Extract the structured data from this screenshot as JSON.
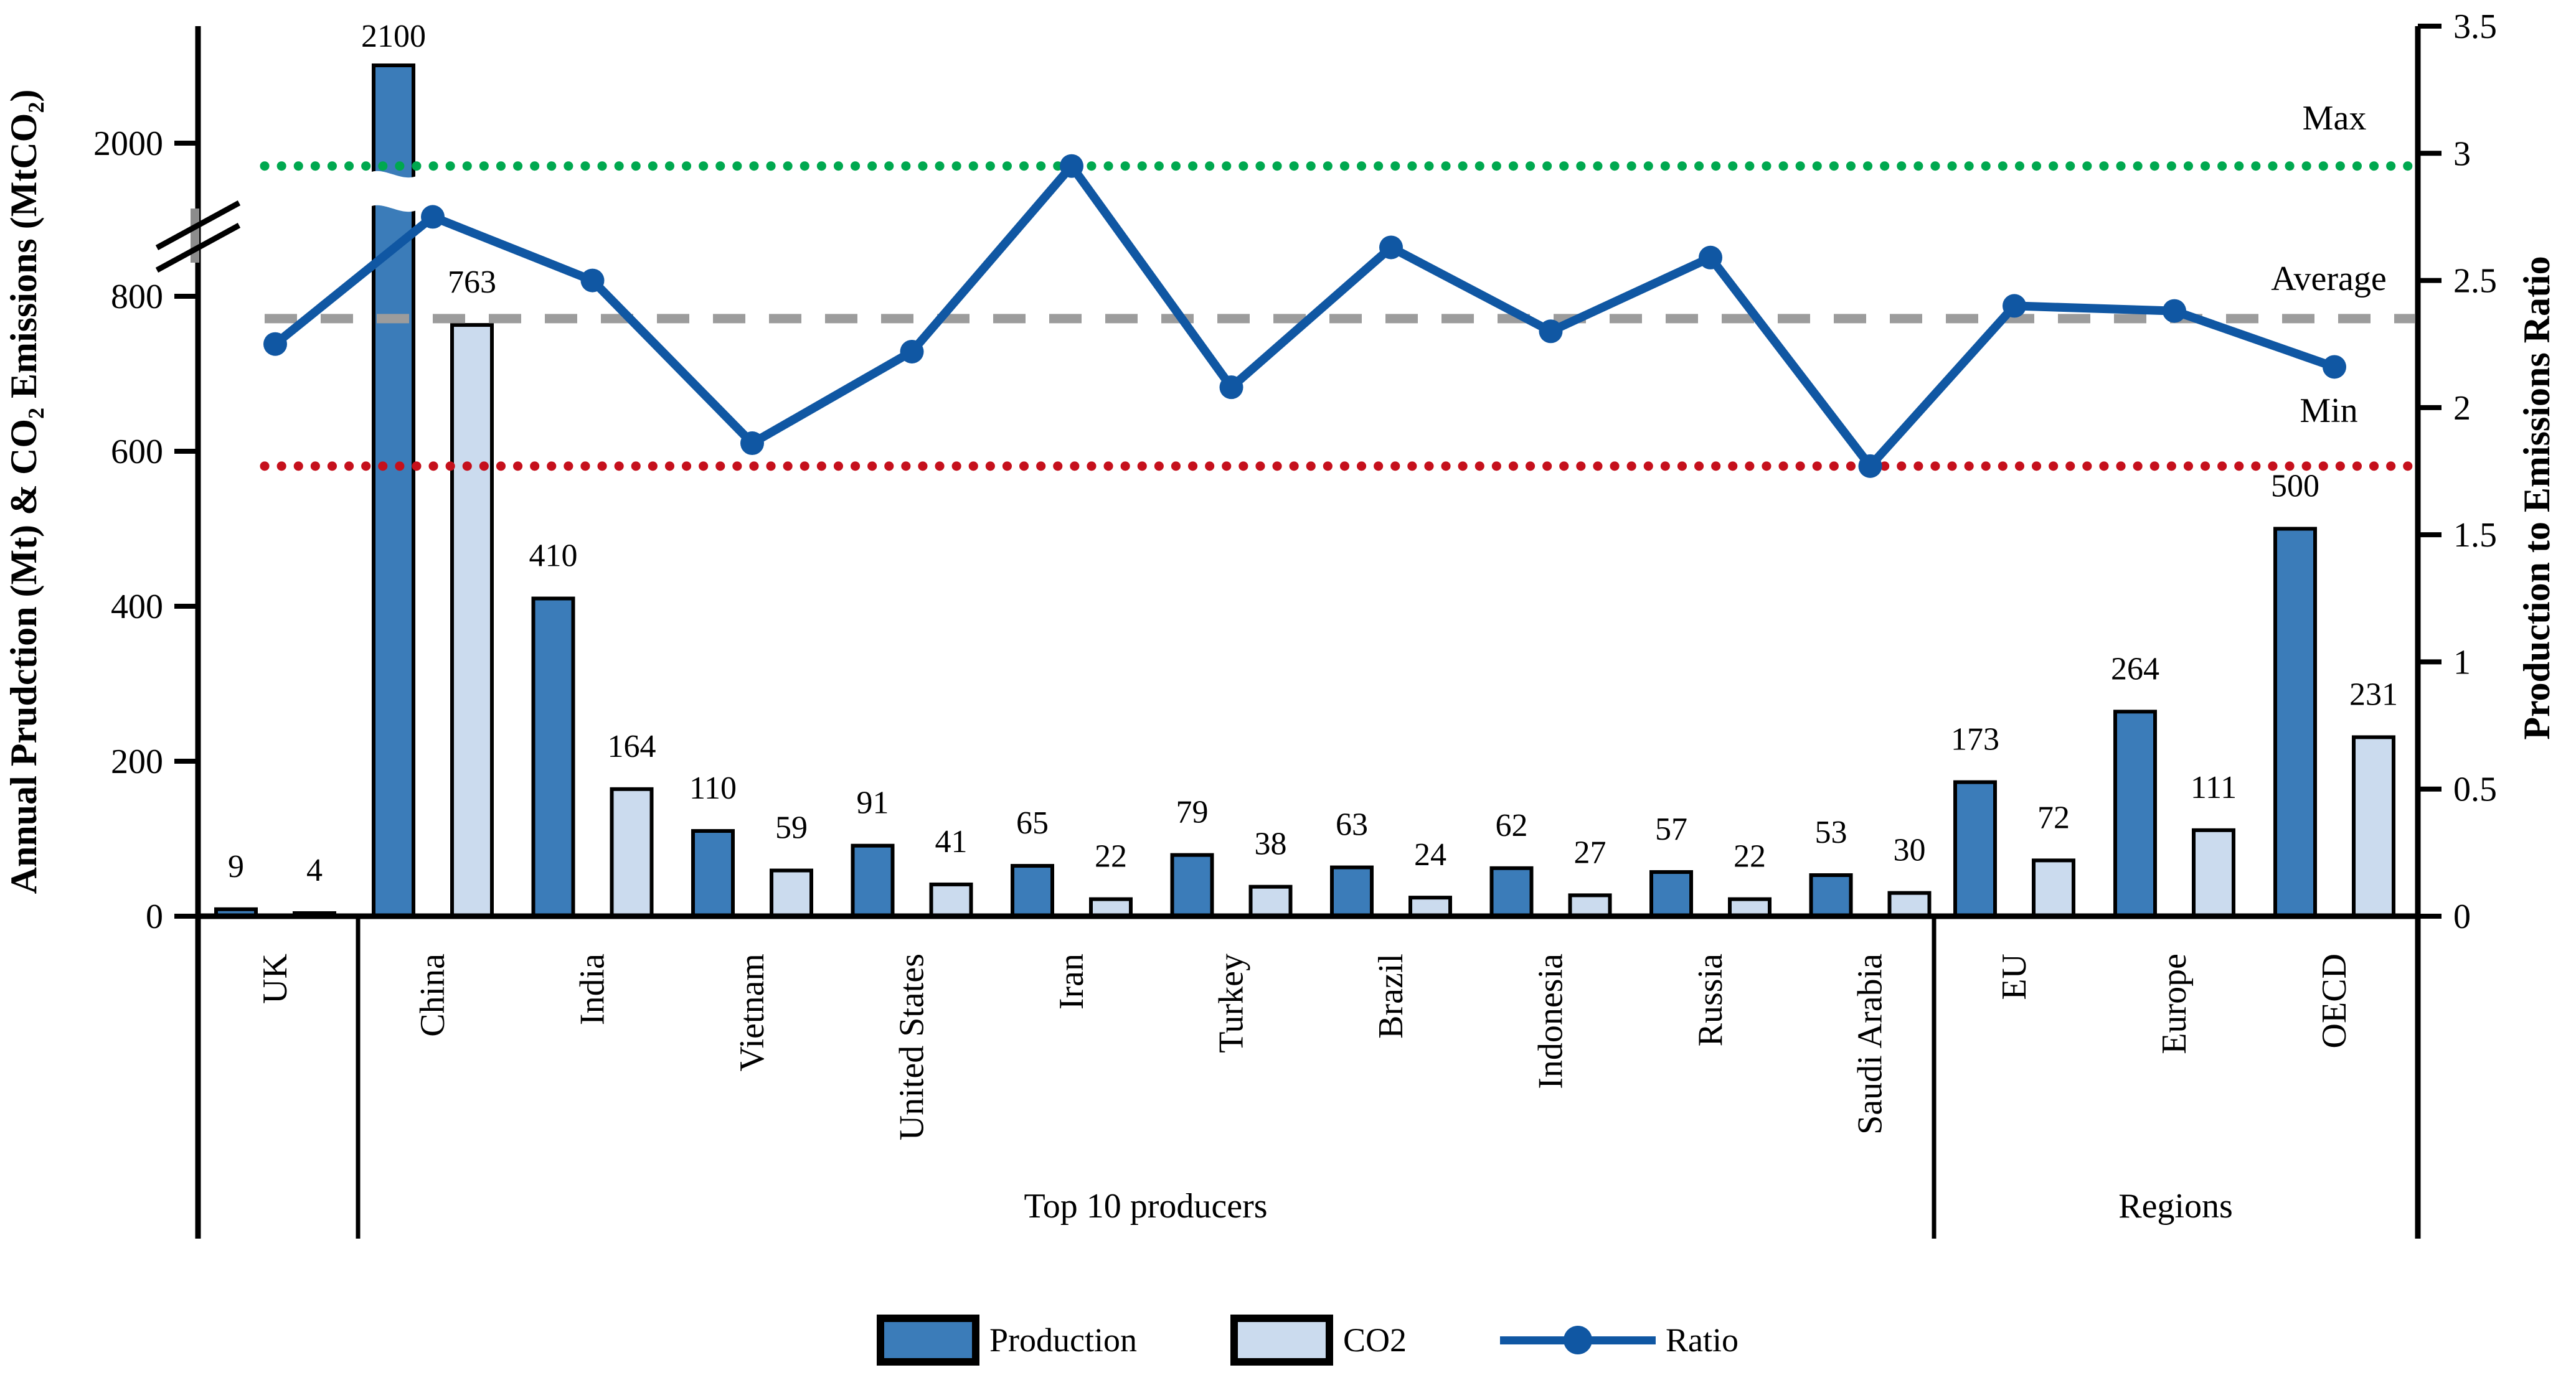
{
  "axes": {
    "left": {
      "title": "Annual Prudction (Mt)  & CO₂ Emissions (MtCO₂)",
      "tick_labels": [
        "0",
        "200",
        "400",
        "600",
        "800",
        "2000"
      ],
      "tick_values": [
        0,
        200,
        400,
        600,
        800,
        2000
      ],
      "has_break": true,
      "break_between": [
        800,
        2000
      ]
    },
    "right": {
      "title": "Production to Emissions Ratio",
      "tick_labels": [
        "0",
        "0.5",
        "1",
        "1.5",
        "2",
        "2.5",
        "3",
        "3.5"
      ],
      "tick_values": [
        0,
        0.5,
        1,
        1.5,
        2,
        2.5,
        3,
        3.5
      ],
      "range": [
        0,
        3.5
      ]
    }
  },
  "annotations": {
    "max_label": "Max",
    "average_label": "Average",
    "min_label": "Min"
  },
  "legend": {
    "items": [
      "Production",
      "CO2",
      "Ratio"
    ]
  },
  "chart_data": {
    "type": "bar",
    "subtype": "grouped bars + line on secondary axis, broken primary axis",
    "categories": [
      "UK",
      "China",
      "India",
      "Vietnam",
      "United States",
      "Iran",
      "Turkey",
      "Brazil",
      "Indonesia",
      "Russia",
      "Saudi Arabia",
      "EU",
      "Europe",
      "OECD"
    ],
    "series": [
      {
        "name": "Production",
        "type": "bar",
        "axis": "left",
        "color": "#3B7CB9",
        "values": [
          9,
          2100,
          410,
          110,
          91,
          65,
          79,
          63,
          62,
          57,
          53,
          173,
          264,
          500
        ]
      },
      {
        "name": "CO2",
        "type": "bar",
        "axis": "left",
        "color": "#CBDBEE",
        "values": [
          4,
          763,
          164,
          59,
          41,
          22,
          38,
          24,
          27,
          22,
          30,
          72,
          111,
          231
        ]
      },
      {
        "name": "Ratio",
        "type": "line",
        "axis": "right",
        "color": "#1057A3",
        "values": [
          2.25,
          2.75,
          2.5,
          1.86,
          2.22,
          2.95,
          2.08,
          2.63,
          2.3,
          2.59,
          1.77,
          2.4,
          2.38,
          2.16
        ]
      }
    ],
    "groups": [
      {
        "label": "",
        "categories": [
          "UK"
        ]
      },
      {
        "label": "Top 10 producers",
        "categories": [
          "China",
          "India",
          "Vietnam",
          "United States",
          "Iran",
          "Turkey",
          "Brazil",
          "Indonesia",
          "Russia",
          "Saudi Arabia"
        ]
      },
      {
        "label": "Regions",
        "categories": [
          "EU",
          "Europe",
          "OECD"
        ]
      }
    ],
    "reference_lines": [
      {
        "label": "Max",
        "value": 2.95,
        "style": "dotted",
        "color": "#00A84F"
      },
      {
        "label": "Average",
        "value": 2.35,
        "style": "dashed",
        "color": "#9C9C9C"
      },
      {
        "label": "Min",
        "value": 1.77,
        "style": "dotted",
        "color": "#C5101C"
      }
    ],
    "broken_bar": {
      "category": "China",
      "series": "Production",
      "value": 2100
    },
    "xlabel": "",
    "ylabel": "Annual Prudction (Mt)  & CO₂ Emissions (MtCO₂)",
    "ylabel_right": "Production to Emissions Ratio",
    "grid": "off",
    "legend_position": "bottom"
  }
}
